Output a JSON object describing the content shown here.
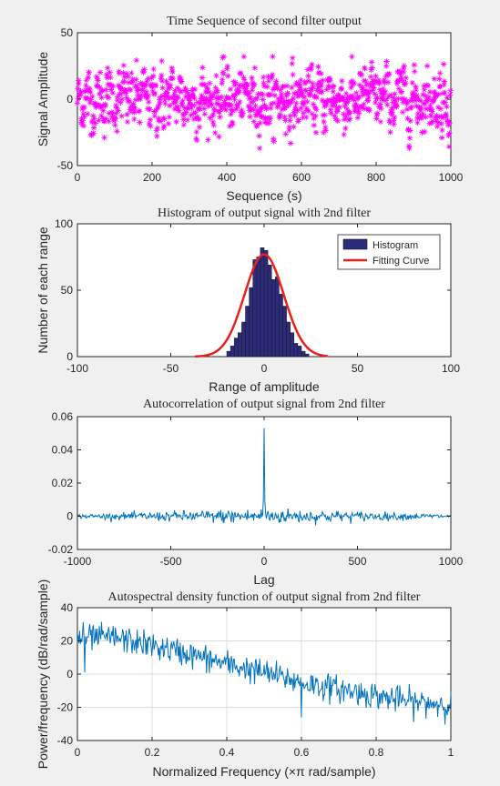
{
  "figure": {
    "background": "#f0f0f0"
  },
  "chart_data": [
    {
      "id": "p1",
      "type": "scatter",
      "title": "Time Sequence of second filter output",
      "xlabel": "Sequence (s)",
      "ylabel": "Signal Amplitude",
      "xlim": [
        0,
        1000
      ],
      "ylim": [
        -50,
        50
      ],
      "xticks": [
        0,
        200,
        400,
        600,
        800,
        1000
      ],
      "yticks": [
        -50,
        0,
        50
      ],
      "grid": false,
      "marker": "asterisk",
      "color": "#ff00ff",
      "points_count": 1000,
      "amplitude_range": [
        -37,
        32
      ]
    },
    {
      "id": "p2",
      "type": "bar",
      "title": "Histogram of output signal with 2nd filter",
      "xlabel": "Range of amplitude",
      "ylabel": "Number of each range",
      "xlim": [
        -100,
        100
      ],
      "ylim": [
        0,
        100
      ],
      "xticks": [
        -100,
        -50,
        0,
        50,
        100
      ],
      "yticks": [
        0,
        50,
        100
      ],
      "grid": false,
      "legend_position": "top-right",
      "bin_width": 2,
      "bins": [
        {
          "x": -19,
          "count": 4
        },
        {
          "x": -17,
          "count": 8
        },
        {
          "x": -15,
          "count": 14
        },
        {
          "x": -13,
          "count": 18
        },
        {
          "x": -11,
          "count": 26
        },
        {
          "x": -9,
          "count": 38
        },
        {
          "x": -7,
          "count": 52
        },
        {
          "x": -5,
          "count": 73
        },
        {
          "x": -3,
          "count": 75
        },
        {
          "x": -1,
          "count": 82
        },
        {
          "x": 1,
          "count": 80
        },
        {
          "x": 3,
          "count": 69
        },
        {
          "x": 5,
          "count": 58
        },
        {
          "x": 7,
          "count": 60
        },
        {
          "x": 9,
          "count": 47
        },
        {
          "x": 11,
          "count": 38
        },
        {
          "x": 13,
          "count": 26
        },
        {
          "x": 15,
          "count": 18
        },
        {
          "x": 17,
          "count": 10
        },
        {
          "x": 19,
          "count": 8
        },
        {
          "x": 21,
          "count": 4
        },
        {
          "x": 23,
          "count": 2
        }
      ],
      "bar_color": "#2b2a7c",
      "fit": {
        "amplitude": 77,
        "mean": 0,
        "sigma": 10.5,
        "range": [
          -37,
          34
        ],
        "color": "#e8201d"
      },
      "legend": [
        {
          "label": "Histogram",
          "kind": "patch",
          "color": "#2b2a7c"
        },
        {
          "label": "Fitting Curve",
          "kind": "line",
          "color": "#e8201d"
        }
      ]
    },
    {
      "id": "p3",
      "type": "line",
      "title": "Autocorrelation of output signal from 2nd filter",
      "xlabel": "Lag",
      "ylabel": "",
      "xlim": [
        -1000,
        1000
      ],
      "ylim": [
        -0.02,
        0.06
      ],
      "xticks": [
        -1000,
        -500,
        0,
        500,
        1000
      ],
      "ytick_labels": [
        "0.06",
        "0.04",
        "0.02",
        "0",
        "-0.02"
      ],
      "yticks": [
        0.06,
        0.04,
        0.02,
        0,
        -0.02
      ],
      "grid": false,
      "color": "#0072bd",
      "peak": {
        "lag": 0,
        "value": 0.053
      },
      "side_peaks": [
        {
          "lag": -5,
          "value": 0.01
        },
        {
          "lag": 5,
          "value": 0.009
        }
      ]
    },
    {
      "id": "p4",
      "type": "line",
      "title": "Autospectral density function of output signal from 2nd filter",
      "xlabel": "Normalized Frequency  (×π rad/sample)",
      "ylabel": "Power/frequency (dB/rad/sample)",
      "xlim": [
        0,
        1
      ],
      "ylim": [
        -40,
        40
      ],
      "xticks": [
        0,
        0.2,
        0.4,
        0.6,
        0.8,
        1
      ],
      "xtick_labels": [
        "0",
        "0.2",
        "0.4",
        "0.6",
        "0.8",
        "1"
      ],
      "yticks": [
        -40,
        -20,
        0,
        20,
        40
      ],
      "grid": true,
      "color": "#0072bd",
      "trend": [
        {
          "x": 0.0,
          "y": 22
        },
        {
          "x": 0.1,
          "y": 22
        },
        {
          "x": 0.2,
          "y": 17
        },
        {
          "x": 0.3,
          "y": 12
        },
        {
          "x": 0.4,
          "y": 6
        },
        {
          "x": 0.5,
          "y": 1
        },
        {
          "x": 0.6,
          "y": -5
        },
        {
          "x": 0.7,
          "y": -9
        },
        {
          "x": 0.8,
          "y": -13
        },
        {
          "x": 0.9,
          "y": -17
        },
        {
          "x": 1.0,
          "y": -18
        }
      ],
      "dips": [
        {
          "x": 0.02,
          "y": 1
        },
        {
          "x": 0.6,
          "y": -26
        }
      ]
    }
  ]
}
